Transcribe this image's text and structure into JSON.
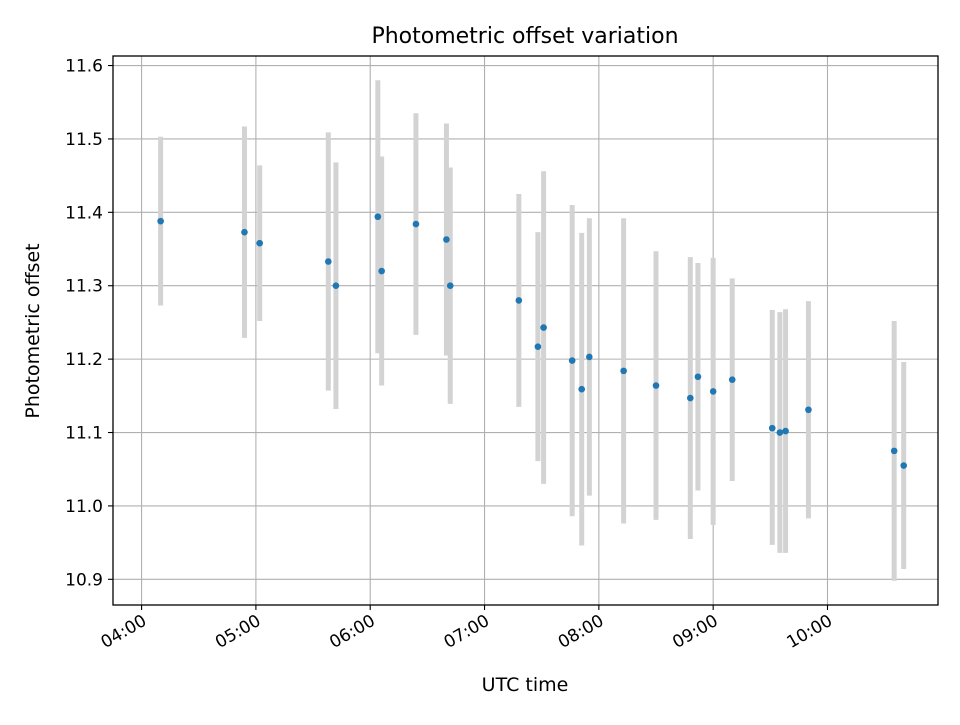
{
  "chart_data": {
    "type": "scatter",
    "title": "Photometric offset variation",
    "xlabel": "UTC time",
    "ylabel": "Photometric offset",
    "xlim": [
      "03:45",
      "10:58"
    ],
    "ylim": [
      10.865,
      11.613
    ],
    "x_ticks": [
      "04:00",
      "05:00",
      "06:00",
      "07:00",
      "08:00",
      "09:00",
      "10:00"
    ],
    "y_ticks": [
      "10.9",
      "11.0",
      "11.1",
      "11.2",
      "11.3",
      "11.4",
      "11.5",
      "11.6"
    ],
    "grid": true,
    "series": [
      {
        "marker_color": "#1f77b4",
        "errorbar_color": "#d3d3d3",
        "points": [
          {
            "x": "04:10",
            "y": 11.388,
            "ylow": 11.273,
            "yhigh": 11.503
          },
          {
            "x": "04:54",
            "y": 11.373,
            "ylow": 11.229,
            "yhigh": 11.517
          },
          {
            "x": "05:02",
            "y": 11.358,
            "ylow": 11.252,
            "yhigh": 11.464
          },
          {
            "x": "05:38",
            "y": 11.333,
            "ylow": 11.157,
            "yhigh": 11.509
          },
          {
            "x": "05:42",
            "y": 11.3,
            "ylow": 11.132,
            "yhigh": 11.468
          },
          {
            "x": "06:04",
            "y": 11.394,
            "ylow": 11.208,
            "yhigh": 11.58
          },
          {
            "x": "06:06",
            "y": 11.32,
            "ylow": 11.164,
            "yhigh": 11.476
          },
          {
            "x": "06:24",
            "y": 11.384,
            "ylow": 11.233,
            "yhigh": 11.535
          },
          {
            "x": "06:40",
            "y": 11.363,
            "ylow": 11.205,
            "yhigh": 11.521
          },
          {
            "x": "06:42",
            "y": 11.3,
            "ylow": 11.139,
            "yhigh": 11.461
          },
          {
            "x": "07:18",
            "y": 11.28,
            "ylow": 11.135,
            "yhigh": 11.425
          },
          {
            "x": "07:28",
            "y": 11.217,
            "ylow": 11.061,
            "yhigh": 11.373
          },
          {
            "x": "07:31",
            "y": 11.243,
            "ylow": 11.03,
            "yhigh": 11.456
          },
          {
            "x": "07:46",
            "y": 11.198,
            "ylow": 10.986,
            "yhigh": 11.41
          },
          {
            "x": "07:51",
            "y": 11.159,
            "ylow": 10.946,
            "yhigh": 11.372
          },
          {
            "x": "07:55",
            "y": 11.203,
            "ylow": 11.014,
            "yhigh": 11.392
          },
          {
            "x": "08:13",
            "y": 11.184,
            "ylow": 10.976,
            "yhigh": 11.392
          },
          {
            "x": "08:30",
            "y": 11.164,
            "ylow": 10.981,
            "yhigh": 11.347
          },
          {
            "x": "08:48",
            "y": 11.147,
            "ylow": 10.955,
            "yhigh": 11.339
          },
          {
            "x": "08:52",
            "y": 11.176,
            "ylow": 11.021,
            "yhigh": 11.331
          },
          {
            "x": "09:00",
            "y": 11.156,
            "ylow": 10.974,
            "yhigh": 11.338
          },
          {
            "x": "09:10",
            "y": 11.172,
            "ylow": 11.034,
            "yhigh": 11.31
          },
          {
            "x": "09:31",
            "y": 11.106,
            "ylow": 10.947,
            "yhigh": 11.267
          },
          {
            "x": "09:35",
            "y": 11.1,
            "ylow": 10.936,
            "yhigh": 11.264
          },
          {
            "x": "09:38",
            "y": 11.102,
            "ylow": 10.936,
            "yhigh": 11.268
          },
          {
            "x": "09:50",
            "y": 11.131,
            "ylow": 10.983,
            "yhigh": 11.279
          },
          {
            "x": "10:35",
            "y": 11.075,
            "ylow": 10.898,
            "yhigh": 11.252
          },
          {
            "x": "10:40",
            "y": 11.055,
            "ylow": 10.914,
            "yhigh": 11.196
          }
        ]
      }
    ]
  }
}
